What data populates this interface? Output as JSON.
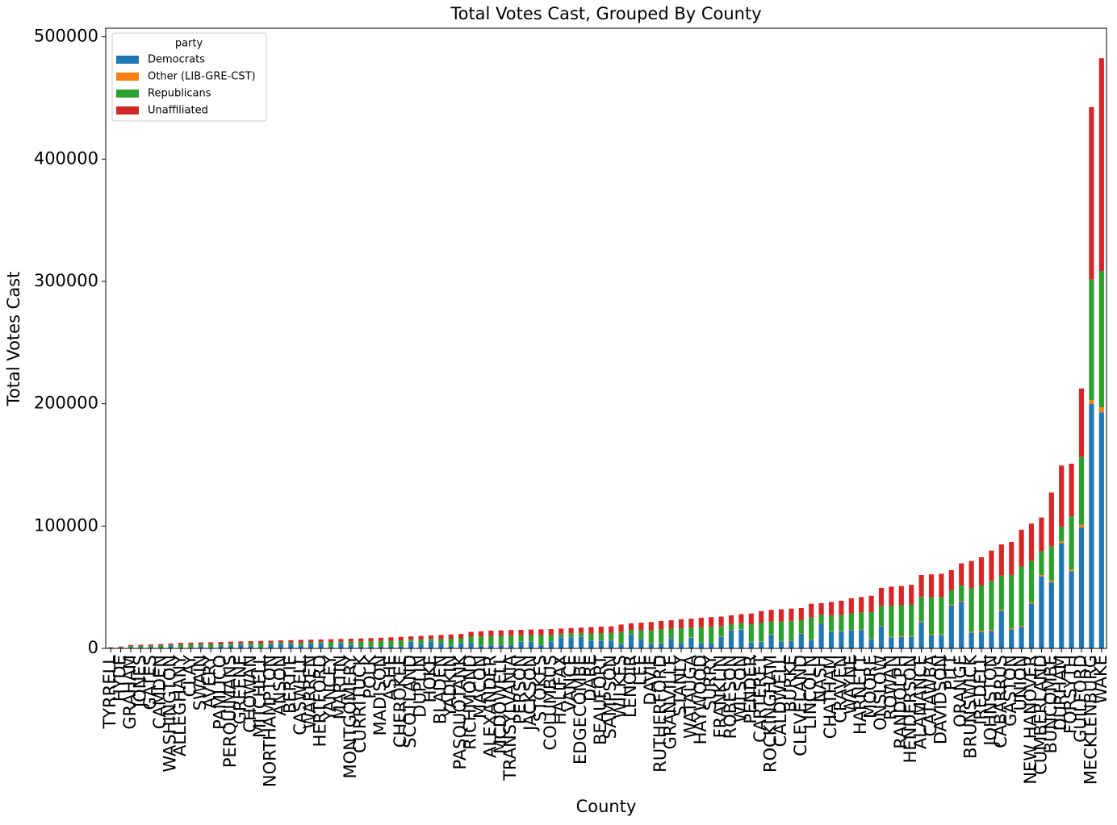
{
  "chart_data": {
    "type": "stacked_bar",
    "title": "Total Votes Cast, Grouped By County",
    "xlabel": "County",
    "ylabel": "Total Votes Cast",
    "legend_title": "party",
    "legend": "upper left",
    "ylim": [
      0,
      507000
    ],
    "yticks": [
      0,
      100000,
      200000,
      300000,
      400000,
      500000
    ],
    "categories": [
      "TYRRELL",
      "HYDE",
      "GRAHAM",
      "JONES",
      "GATES",
      "CAMDEN",
      "WASHINGTON",
      "ALLEGHANY",
      "CLAY",
      "SWAIN",
      "AVERY",
      "PAMLICO",
      "PERQUIMANS",
      "GREENE",
      "CHOWAN",
      "MITCHELL",
      "NORTHAMPTON",
      "ANSON",
      "BERTIE",
      "CASWELL",
      "WARREN",
      "HERTFORD",
      "YANCEY",
      "MARTIN",
      "MONTGOMERY",
      "CURRITUCK",
      "POLK",
      "MADISON",
      "ASHE",
      "CHEROKEE",
      "SCOTLAND",
      "DUPLIN",
      "HOKE",
      "BLADEN",
      "YADKIN",
      "PASQUOTANK",
      "RICHMOND",
      "MACON",
      "ALEXANDER",
      "MCDOWELL",
      "TRANSYLVANIA",
      "PERSON",
      "JACKSON",
      "STOKES",
      "COLUMBUS",
      "HALIFAX",
      "VANCE",
      "EDGECOMBE",
      "DARE",
      "BEAUFORT",
      "SAMPSON",
      "WILKES",
      "LENOIR",
      "LEE",
      "DAVIE",
      "RUTHERFORD",
      "GRANVILLE",
      "STANLY",
      "WATAUGA",
      "HAYWOOD",
      "SURRY",
      "FRANKLIN",
      "ROBESON",
      "WILSON",
      "PENDER",
      "CARTERET",
      "ROCKINGHAM",
      "CALDWELL",
      "BURKE",
      "CLEVELAND",
      "LINCOLN",
      "NASH",
      "CHATHAM",
      "CRAVEN",
      "WAYNE",
      "HARNETT",
      "MOORE",
      "ONSLOW",
      "ROWAN",
      "RANDOLPH",
      "HENDERSON",
      "ALAMANCE",
      "CATAWBA",
      "DAVIDSON",
      "PITT",
      "ORANGE",
      "BRUNSWICK",
      "IREDELL",
      "JOHNSTON",
      "CABARRUS",
      "GASTON",
      "UNION",
      "NEW HANOVER",
      "CUMBERLAND",
      "BUNCOMBE",
      "DURHAM",
      "FORSYTH",
      "GUILFORD",
      "MECKLENBURG",
      "WAKE"
    ],
    "series": [
      {
        "name": "Democrats",
        "color": "#1f77b4",
        "values": [
          400,
          500,
          500,
          1100,
          1200,
          600,
          2200,
          800,
          800,
          1800,
          900,
          1900,
          2000,
          3100,
          2100,
          1100,
          3500,
          3600,
          3700,
          2500,
          3900,
          4000,
          1400,
          4200,
          2800,
          1500,
          1500,
          1600,
          1600,
          1700,
          5400,
          3700,
          5800,
          4000,
          2100,
          4200,
          4900,
          2500,
          2600,
          2700,
          2700,
          5500,
          5500,
          2800,
          5700,
          8900,
          9100,
          9400,
          6300,
          6400,
          6500,
          3500,
          11300,
          7600,
          3900,
          4100,
          8300,
          4300,
          8700,
          4500,
          4600,
          9400,
          14900,
          15400,
          5100,
          5500,
          11300,
          5800,
          5900,
          11900,
          6600,
          20400,
          13700,
          14000,
          14800,
          15100,
          7700,
          17800,
          9100,
          9200,
          9400,
          21600,
          10900,
          11000,
          35200,
          38200,
          12900,
          13400,
          14400,
          30600,
          15700,
          17500,
          36700,
          58900,
          54000,
          86000,
          63000,
          99000,
          200000,
          193000
        ]
      },
      {
        "name": "Other (LIB-GRE-CST)",
        "color": "#ff7f0e",
        "values": [
          10,
          15,
          28,
          30,
          32,
          35,
          40,
          45,
          47,
          49,
          50,
          53,
          55,
          57,
          59,
          61,
          63,
          65,
          67,
          69,
          71,
          73,
          75,
          77,
          79,
          81,
          84,
          87,
          90,
          94,
          98,
          102,
          106,
          110,
          114,
          118,
          135,
          140,
          145,
          148,
          150,
          152,
          154,
          156,
          158,
          162,
          166,
          170,
          174,
          178,
          180,
          195,
          205,
          210,
          215,
          225,
          230,
          238,
          243,
          250,
          256,
          260,
          270,
          280,
          285,
          305,
          315,
          320,
          325,
          330,
          365,
          370,
          380,
          390,
          410,
          420,
          430,
          495,
          505,
          510,
          520,
          600,
          605,
          610,
          640,
          695,
          715,
          745,
          800,
          850,
          870,
          970,
          1020,
          1070,
          1500,
          1500,
          1500,
          2000,
          3000,
          4000
        ]
      },
      {
        "name": "Republicans",
        "color": "#2ca02c",
        "values": [
          300,
          500,
          1400,
          1000,
          1000,
          1800,
          700,
          2300,
          2400,
          1600,
          2500,
          1700,
          1800,
          1000,
          1900,
          3100,
          1100,
          1200,
          1200,
          2300,
          1300,
          1300,
          3800,
          1400,
          2600,
          4100,
          4200,
          4400,
          4500,
          4700,
          1800,
          3400,
          1900,
          3600,
          5700,
          3900,
          4500,
          7000,
          7300,
          7400,
          7500,
          5000,
          5100,
          7800,
          5200,
          2900,
          3000,
          3100,
          5700,
          5900,
          5900,
          9800,
          3700,
          6900,
          10800,
          11300,
          7600,
          11900,
          8000,
          12500,
          12800,
          8600,
          4900,
          5000,
          14300,
          15300,
          10400,
          16000,
          16300,
          10900,
          18300,
          6700,
          12500,
          12900,
          13500,
          13900,
          21500,
          16300,
          25300,
          25500,
          26000,
          19800,
          30300,
          30500,
          11500,
          12500,
          35800,
          37300,
          40000,
          28100,
          43500,
          48500,
          33700,
          19300,
          28000,
          12000,
          43500,
          55500,
          98500,
          111500
        ]
      },
      {
        "name": "Unaffiliated",
        "color": "#d62728",
        "values": [
          290,
          485,
          872,
          870,
          968,
          1065,
          1060,
          1355,
          1453,
          1451,
          1550,
          1647,
          1645,
          1543,
          1841,
          1839,
          1637,
          1635,
          1733,
          2031,
          1829,
          1927,
          2225,
          2023,
          2421,
          2419,
          2616,
          2613,
          2810,
          2906,
          2502,
          2998,
          2794,
          3290,
          3486,
          3582,
          3965,
          4360,
          4455,
          4552,
          4650,
          4548,
          4646,
          4844,
          4742,
          4238,
          4334,
          4330,
          5226,
          5322,
          5420,
          6005,
          5295,
          6290,
          6585,
          6875,
          6870,
          7362,
          7357,
          7750,
          7944,
          7740,
          6930,
          7320,
          8815,
          9395,
          9485,
          9880,
          9975,
          9870,
          11235,
          9530,
          11420,
          11710,
          12290,
          12580,
          13370,
          14905,
          15595,
          15790,
          16080,
          18000,
          18695,
          18890,
          16660,
          18105,
          22085,
          23055,
          24800,
          25450,
          26930,
          30030,
          30580,
          27730,
          44000,
          50000,
          43000,
          56000,
          141000,
          174000
        ]
      }
    ]
  }
}
